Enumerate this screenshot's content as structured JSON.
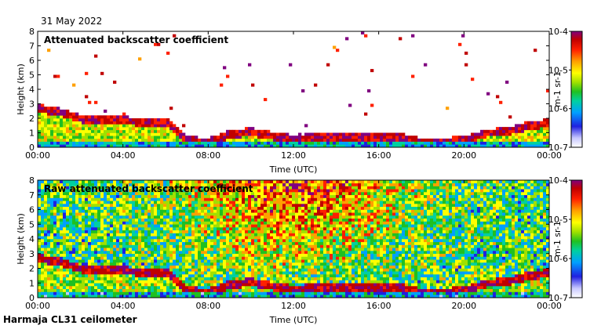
{
  "header": {
    "date": "31 May 2022"
  },
  "footer": {
    "station": "Harmaja CL31 ceilometer"
  },
  "colors": {
    "colormap": [
      "#ffffff",
      "#c8c8ff",
      "#2020e0",
      "#00a0ff",
      "#00d0a0",
      "#20c020",
      "#a0e000",
      "#ffff00",
      "#ffa000",
      "#ff2000",
      "#c00000",
      "#800080"
    ]
  },
  "chart_data": [
    {
      "type": "heatmap",
      "title": "Attenuated backscatter coefficient",
      "xlabel": "Time (UTC)",
      "ylabel": "Height (km)",
      "x_ticks": [
        "00:00",
        "04:00",
        "08:00",
        "12:00",
        "16:00",
        "20:00",
        "00:00"
      ],
      "y_ticks": [
        "0",
        "1",
        "2",
        "3",
        "4",
        "5",
        "6",
        "7",
        "8"
      ],
      "ylim": [
        0,
        8
      ],
      "colorbar": {
        "label": "m-1 sr-1",
        "ticks": [
          "10-7",
          "10-6",
          "10-5",
          "10-4"
        ]
      },
      "cloud_base_km": {
        "hours": [
          0,
          1,
          2,
          3,
          4,
          5,
          6,
          7,
          8,
          9,
          10,
          11,
          12,
          13,
          14,
          15,
          16,
          17,
          18,
          19,
          20,
          21,
          22,
          23,
          24
        ],
        "values": [
          2.6,
          2.4,
          1.9,
          1.8,
          1.8,
          1.6,
          1.7,
          0.4,
          0.3,
          0.8,
          1.0,
          0.7,
          0.5,
          0.6,
          0.7,
          0.6,
          0.7,
          0.6,
          0.3,
          0.3,
          0.4,
          0.9,
          1.0,
          1.4,
          1.6
        ]
      }
    },
    {
      "type": "heatmap",
      "title": "Raw attenuated backscatter coefficient",
      "xlabel": "Time (UTC)",
      "ylabel": "Height (km)",
      "x_ticks": [
        "00:00",
        "04:00",
        "08:00",
        "12:00",
        "16:00",
        "20:00",
        "00:00"
      ],
      "y_ticks": [
        "0",
        "1",
        "2",
        "3",
        "4",
        "5",
        "6",
        "7",
        "8"
      ],
      "ylim": [
        0,
        8
      ],
      "colorbar": {
        "label": "m-1 sr-1",
        "ticks": [
          "10-7",
          "10-6",
          "10-5",
          "10-4"
        ]
      },
      "cloud_base_km": {
        "hours": [
          0,
          1,
          2,
          3,
          4,
          5,
          6,
          7,
          8,
          9,
          10,
          11,
          12,
          13,
          14,
          15,
          16,
          17,
          18,
          19,
          20,
          21,
          22,
          23,
          24
        ],
        "values": [
          2.6,
          2.4,
          1.9,
          1.8,
          1.8,
          1.6,
          1.7,
          0.4,
          0.3,
          0.8,
          1.0,
          0.7,
          0.5,
          0.6,
          0.7,
          0.6,
          0.7,
          0.6,
          0.3,
          0.3,
          0.4,
          0.9,
          1.0,
          1.4,
          1.6
        ]
      }
    }
  ]
}
